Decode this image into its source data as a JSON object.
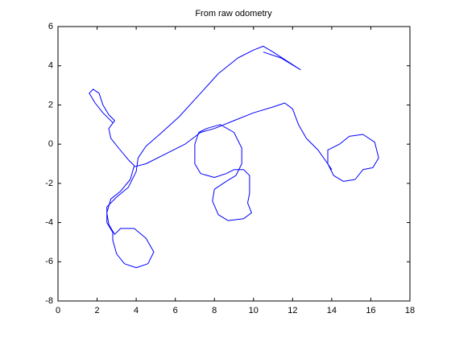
{
  "chart_data": {
    "type": "line",
    "title": "From raw odometry",
    "x": [
      2.8,
      2.3,
      1.9,
      1.6,
      1.8,
      2.1,
      2.3,
      2.6,
      2.9,
      2.6,
      2.7,
      3.1,
      3.6,
      3.9,
      3.7,
      3.2,
      2.7,
      2.5,
      2.6,
      2.9,
      3.2,
      3.9,
      4.5,
      4.9,
      4.6,
      4.0,
      3.4,
      3.0,
      2.8,
      2.8,
      2.5,
      2.5,
      3.0,
      3.6,
      4.0,
      4.1,
      4.5,
      5.2,
      6.2,
      7.2,
      8.2,
      9.2,
      10.0,
      10.5,
      11.0,
      12.4,
      11.4,
      10.5,
      null,
      3.9,
      4.5,
      5.5,
      6.5,
      7.3,
      8.0,
      9.0,
      10.0,
      11.0,
      11.6,
      12.0,
      12.3,
      12.7,
      13.3,
      13.8,
      14.1,
      14.6,
      15.2,
      15.6,
      16.1,
      16.4,
      16.2,
      15.6,
      14.9,
      14.4,
      13.8,
      13.8,
      14.0,
      null,
      7.2,
      7.0,
      7.0,
      7.3,
      8.0,
      8.6,
      9.0,
      9.5,
      9.8,
      9.8,
      9.7,
      9.9,
      9.5,
      8.7,
      8.2,
      7.9,
      8.0,
      8.6,
      9.1,
      9.4,
      9.4,
      9.0,
      8.3,
      7.6,
      7.2
    ],
    "series": [
      {
        "color": "#0000ff",
        "values": [
          1.1,
          1.6,
          2.1,
          2.6,
          2.8,
          2.6,
          2.0,
          1.5,
          1.2,
          0.8,
          0.3,
          -0.2,
          -0.8,
          -1.1,
          -1.8,
          -2.4,
          -2.8,
          -3.5,
          -4.1,
          -4.6,
          -4.3,
          -4.3,
          -4.8,
          -5.5,
          -6.1,
          -6.3,
          -6.1,
          -5.6,
          -4.9,
          -4.5,
          -4.0,
          -3.2,
          -2.7,
          -2.2,
          -1.4,
          -0.7,
          -0.1,
          0.5,
          1.4,
          2.5,
          3.6,
          4.4,
          4.8,
          5.0,
          4.7,
          3.8,
          4.4,
          4.7,
          null,
          -1.15,
          -1.0,
          -0.5,
          0,
          0.6,
          0.8,
          1.2,
          1.6,
          1.9,
          2.1,
          1.8,
          1.0,
          0.3,
          -0.3,
          -1.0,
          -1.6,
          -1.9,
          -1.8,
          -1.3,
          -1.2,
          -0.7,
          0.1,
          0.5,
          0.4,
          0.0,
          -0.3,
          -1.0,
          -1.3,
          null,
          0.6,
          0,
          -1.0,
          -1.5,
          -1.7,
          -1.5,
          -1.3,
          -1.3,
          -1.6,
          -2.5,
          -3.0,
          -3.5,
          -3.8,
          -3.9,
          -3.6,
          -2.9,
          -2.3,
          -1.9,
          -1.6,
          -1.0,
          -0.2,
          0.6,
          1.0,
          0.8,
          0.6
        ]
      }
    ],
    "xlim": [
      0,
      18
    ],
    "xticks": [
      0,
      2,
      4,
      6,
      8,
      10,
      12,
      14,
      16,
      18
    ],
    "ylim": [
      -8,
      6
    ],
    "yticks": [
      -8,
      -6,
      -4,
      -2,
      0,
      2,
      4,
      6
    ]
  }
}
